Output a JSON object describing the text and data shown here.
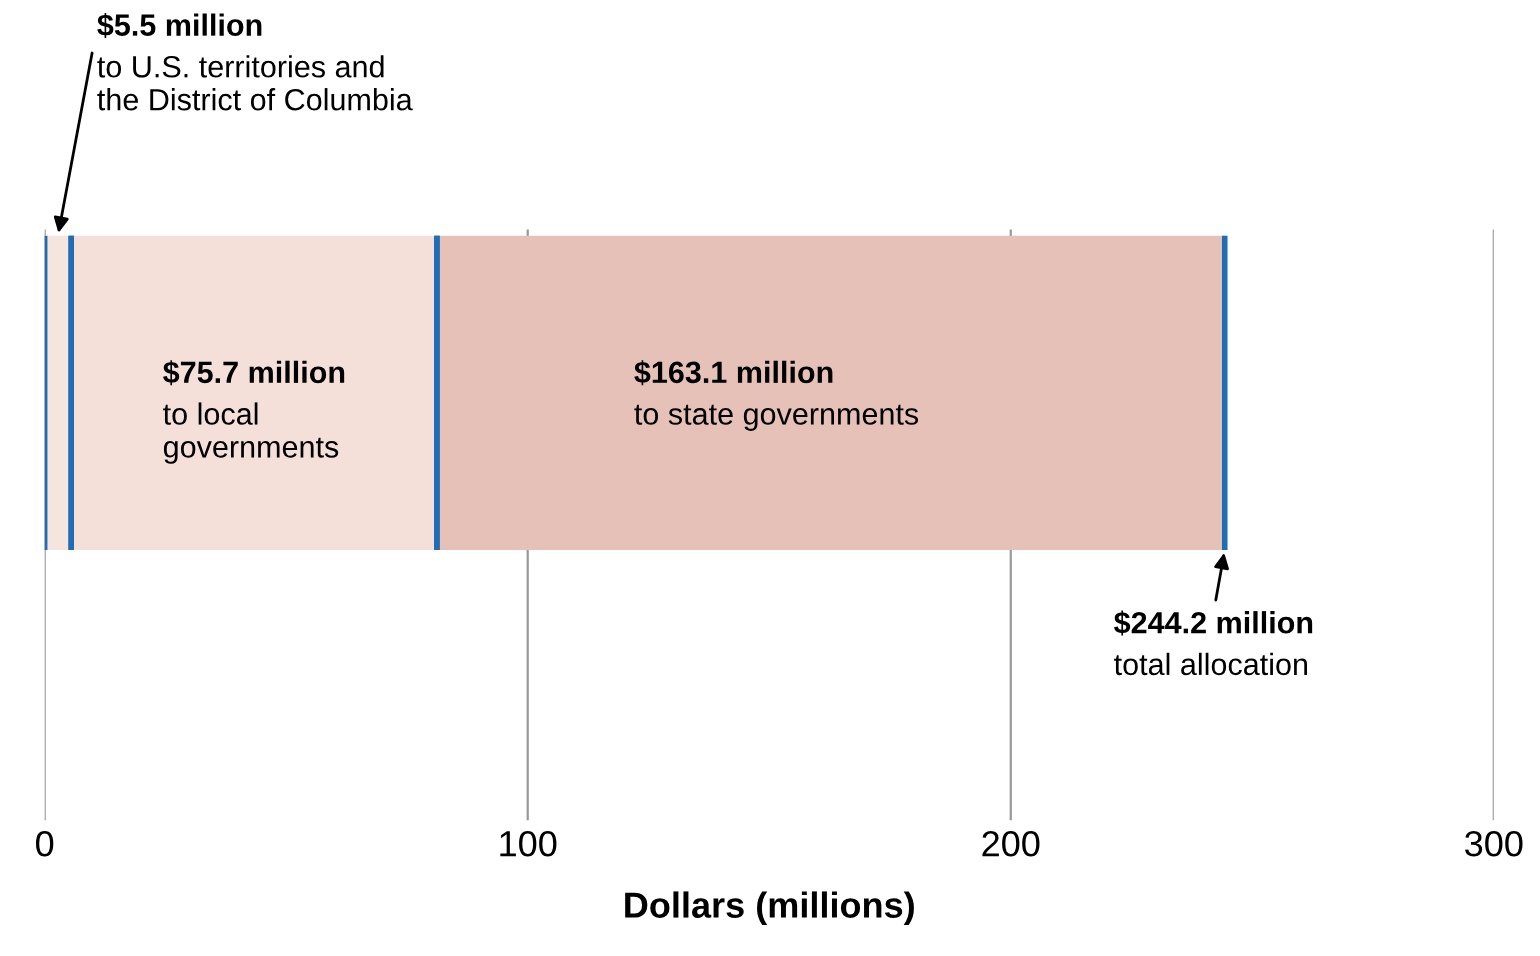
{
  "chart_data": {
    "type": "bar",
    "orientation": "horizontal",
    "stacked": true,
    "categories": [
      null
    ],
    "series": [
      {
        "color": "#f6e4df",
        "values": [
          5.5
        ],
        "value_labels": [
          "$5.5 million\nto U.S. territories and\nthe District of Columbia"
        ]
      },
      {
        "color": "#f4dfd9",
        "values": [
          75.7
        ],
        "value_labels": [
          "$75.7 million\nto local\ngovernments"
        ]
      },
      {
        "color": "#e6c1b7",
        "values": [
          163.1
        ],
        "value_labels": [
          "$163.1 million\nto state governments"
        ]
      }
    ],
    "totals": [
      "$244.2 million\ntotal allocation"
    ],
    "xlim": [
      0,
      300
    ],
    "xticks": [
      0,
      100,
      200,
      300
    ],
    "xlabel": "Dollars (millions)",
    "grid": "x",
    "tick_labels": "x"
  }
}
